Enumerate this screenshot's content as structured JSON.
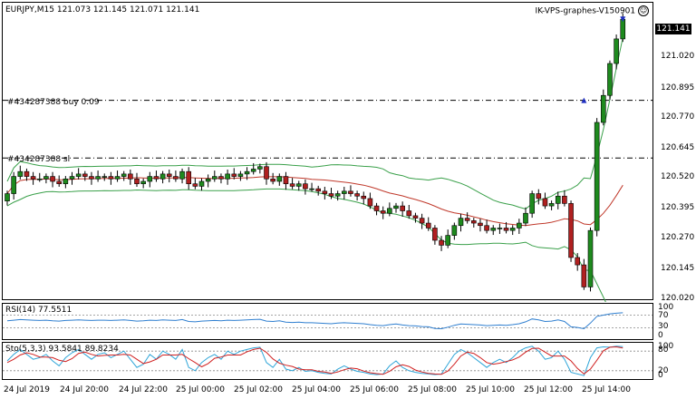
{
  "header": {
    "symbol_line": "EURJPY,M15  121.073 121.145 121.071 121.141",
    "account_label": "IK-VPS-graphes-V150901"
  },
  "price_axis": {
    "current_price": "121.141",
    "ticks": [
      "121.020",
      "120.895",
      "120.770",
      "120.645",
      "120.520",
      "120.395",
      "120.270",
      "120.145",
      "120.020"
    ]
  },
  "order_lines": [
    {
      "label": "#434287388 buy 0.09",
      "price": 120.81
    },
    {
      "label": "#434287388 sl",
      "price": 120.575
    }
  ],
  "rsi": {
    "label": "RSI(14) 77.5511",
    "ticks": [
      "100",
      "70",
      "30",
      "0"
    ],
    "value": 77.55
  },
  "stoch": {
    "label": "Sto(5,3,3) 93.5841 89.8234",
    "ticks": [
      "100",
      "80",
      "20",
      "0"
    ],
    "main": 93.58,
    "signal": 89.82
  },
  "time_axis": [
    "24 Jul 2019",
    "24 Jul 20:00",
    "24 Jul 22:00",
    "25 Jul 00:00",
    "25 Jul 02:00",
    "25 Jul 04:00",
    "25 Jul 06:00",
    "25 Jul 08:00",
    "25 Jul 10:00",
    "25 Jul 12:00",
    "25 Jul 14:00"
  ],
  "colors": {
    "bull": "#1e8a1e",
    "bear": "#b02020",
    "ma": "#c0392b",
    "bands": "#3aa04a",
    "rsi": "#2f7fd0",
    "stoch_main": "#2fa5d8",
    "stoch_signal": "#d02020",
    "order_line": "#000000",
    "price_box": "#000000"
  },
  "chart_data": {
    "type": "candlestick",
    "symbol": "EURJPY",
    "timeframe": "M15",
    "ohlc_last": {
      "open": 121.073,
      "high": 121.145,
      "low": 121.071,
      "close": 121.141
    },
    "ylim": [
      120.0,
      121.2
    ],
    "closes": [
      120.43,
      120.5,
      120.52,
      120.5,
      120.49,
      120.49,
      120.5,
      120.48,
      120.47,
      120.49,
      120.5,
      120.51,
      120.5,
      120.49,
      120.5,
      120.5,
      120.49,
      120.5,
      120.51,
      120.49,
      120.47,
      120.48,
      120.5,
      120.49,
      120.51,
      120.5,
      120.49,
      120.52,
      120.47,
      120.46,
      120.48,
      120.49,
      120.5,
      120.49,
      120.51,
      120.5,
      120.51,
      120.52,
      120.53,
      120.54,
      120.49,
      120.48,
      120.5,
      120.47,
      120.46,
      120.47,
      120.45,
      120.45,
      120.44,
      120.43,
      120.42,
      120.43,
      120.44,
      120.43,
      120.42,
      120.41,
      120.38,
      120.36,
      120.35,
      120.37,
      120.38,
      120.36,
      120.34,
      120.33,
      120.31,
      120.29,
      120.24,
      120.22,
      120.26,
      120.3,
      120.33,
      120.32,
      120.31,
      120.3,
      120.28,
      120.29,
      120.29,
      120.28,
      120.29,
      120.31,
      120.35,
      120.43,
      120.41,
      120.38,
      120.39,
      120.42,
      120.39,
      120.17,
      120.14,
      120.05,
      120.28,
      120.72,
      120.83,
      120.96,
      121.06,
      121.14
    ],
    "rsi_values": [
      52,
      54,
      56,
      55,
      54,
      53,
      54,
      52,
      51,
      53,
      54,
      55,
      54,
      53,
      54,
      54,
      53,
      54,
      55,
      53,
      51,
      52,
      54,
      53,
      55,
      54,
      53,
      56,
      50,
      49,
      51,
      52,
      53,
      52,
      54,
      53,
      54,
      55,
      56,
      57,
      51,
      50,
      52,
      48,
      47,
      48,
      46,
      46,
      45,
      44,
      43,
      45,
      46,
      45,
      44,
      43,
      40,
      38,
      37,
      40,
      42,
      39,
      37,
      36,
      34,
      33,
      28,
      27,
      32,
      38,
      42,
      41,
      40,
      39,
      37,
      38,
      39,
      38,
      40,
      43,
      49,
      58,
      55,
      50,
      51,
      55,
      50,
      33,
      31,
      27,
      45,
      66,
      70,
      74,
      76,
      77.55
    ],
    "stoch_main": [
      50,
      70,
      85,
      70,
      55,
      60,
      70,
      50,
      35,
      60,
      75,
      85,
      70,
      55,
      70,
      75,
      60,
      70,
      80,
      55,
      30,
      40,
      70,
      55,
      80,
      70,
      55,
      85,
      30,
      20,
      45,
      60,
      70,
      55,
      80,
      70,
      80,
      85,
      90,
      92,
      45,
      30,
      55,
      25,
      20,
      30,
      18,
      20,
      15,
      12,
      10,
      25,
      35,
      25,
      18,
      15,
      10,
      8,
      10,
      35,
      50,
      30,
      20,
      15,
      12,
      10,
      8,
      10,
      40,
      70,
      85,
      75,
      60,
      45,
      30,
      45,
      55,
      45,
      60,
      80,
      90,
      95,
      80,
      55,
      60,
      80,
      55,
      15,
      10,
      5,
      60,
      90,
      93,
      92,
      95,
      93.58
    ],
    "stoch_signal": [
      45,
      55,
      68,
      75,
      70,
      62,
      62,
      60,
      52,
      48,
      57,
      73,
      77,
      70,
      65,
      67,
      68,
      68,
      70,
      68,
      55,
      42,
      47,
      55,
      68,
      68,
      68,
      70,
      57,
      45,
      32,
      42,
      58,
      62,
      68,
      68,
      68,
      78,
      85,
      89,
      76,
      56,
      43,
      37,
      33,
      25,
      23,
      23,
      18,
      16,
      12,
      16,
      23,
      28,
      26,
      19,
      14,
      11,
      9,
      18,
      32,
      38,
      33,
      22,
      16,
      12,
      10,
      9,
      19,
      40,
      65,
      77,
      73,
      60,
      45,
      40,
      43,
      48,
      53,
      62,
      77,
      88,
      89,
      77,
      65,
      65,
      65,
      50,
      27,
      10,
      25,
      52,
      81,
      92,
      93,
      89.82
    ]
  }
}
